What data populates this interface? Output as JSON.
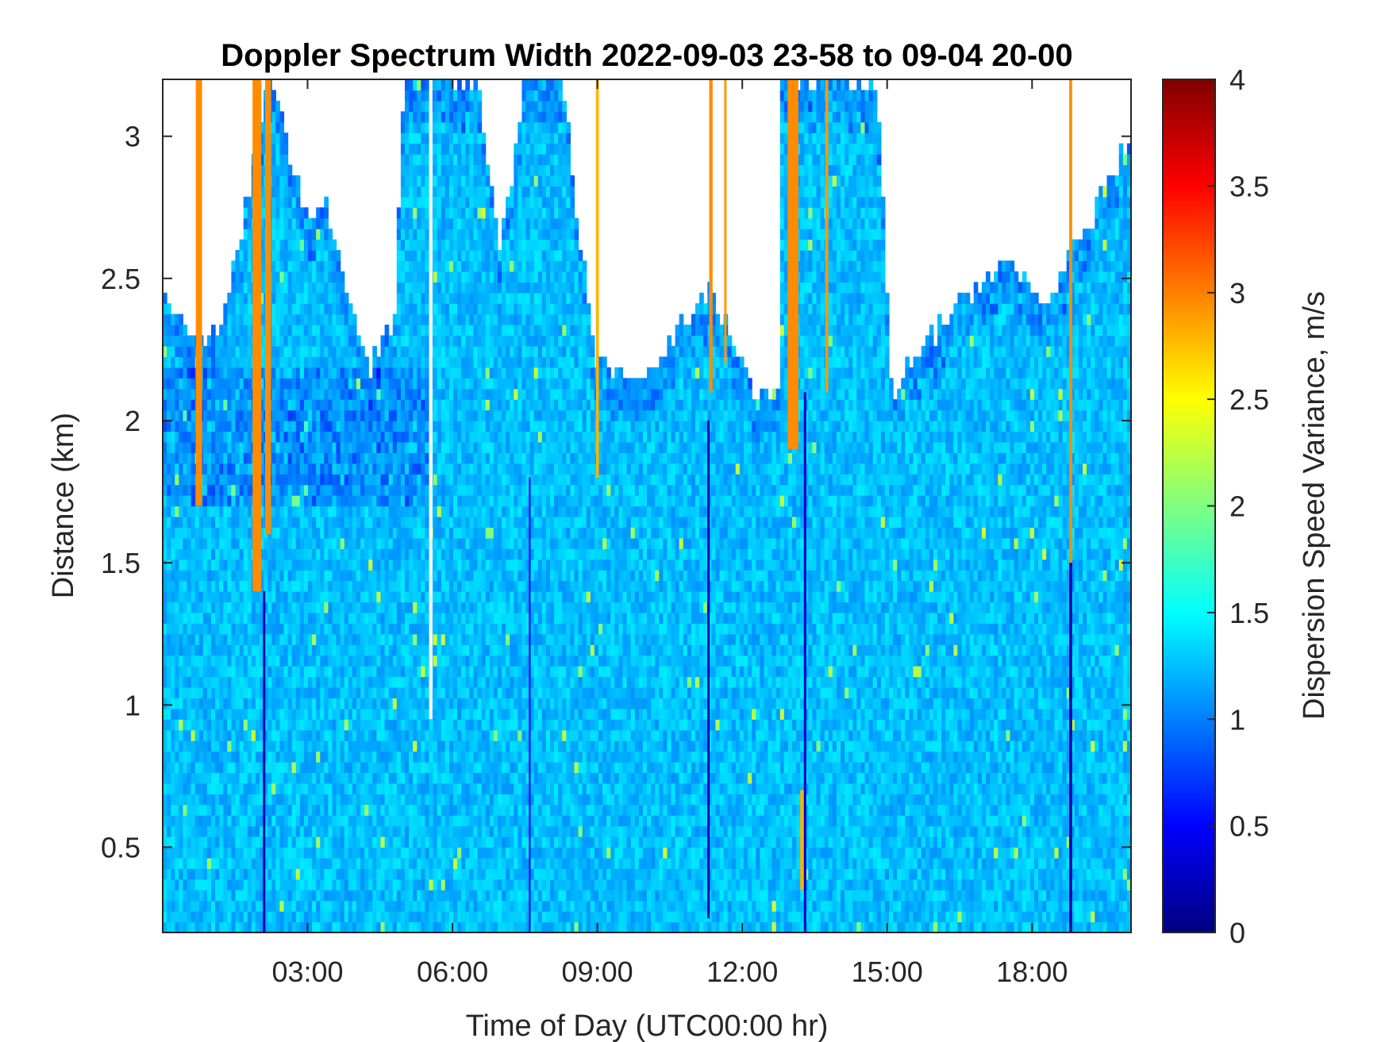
{
  "chart_data": {
    "type": "heatmap",
    "title": "Doppler Spectrum Width 2022-09-03 23-58 to 09-04 20-00",
    "xlabel": "Time of Day (UTC00:00 hr)",
    "ylabel": "Distance (km)",
    "colorbar_label": "Dispersion Speed Variance, m/s",
    "colormap": "jet",
    "x_range_hours": [
      0,
      20.05
    ],
    "y_range_km": [
      0.2,
      3.2
    ],
    "color_range": [
      0,
      4
    ],
    "x_ticks": [
      {
        "value": 3,
        "label": "03:00"
      },
      {
        "value": 6,
        "label": "06:00"
      },
      {
        "value": 9,
        "label": "09:00"
      },
      {
        "value": 12,
        "label": "12:00"
      },
      {
        "value": 15,
        "label": "15:00"
      },
      {
        "value": 18,
        "label": "18:00"
      }
    ],
    "y_ticks": [
      {
        "value": 0.5,
        "label": "0.5"
      },
      {
        "value": 1,
        "label": "1"
      },
      {
        "value": 1.5,
        "label": "1.5"
      },
      {
        "value": 2,
        "label": "2"
      },
      {
        "value": 2.5,
        "label": "2.5"
      },
      {
        "value": 3,
        "label": "3"
      }
    ],
    "colorbar_ticks": [
      {
        "value": 0,
        "label": "0"
      },
      {
        "value": 0.5,
        "label": "0.5"
      },
      {
        "value": 1,
        "label": "1"
      },
      {
        "value": 1.5,
        "label": "1.5"
      },
      {
        "value": 2,
        "label": "2"
      },
      {
        "value": 2.5,
        "label": "2.5"
      },
      {
        "value": 3,
        "label": "3"
      },
      {
        "value": 3.5,
        "label": "3.5"
      },
      {
        "value": 4,
        "label": "4"
      }
    ],
    "background_value": 1.25,
    "coverage_top_km": [
      {
        "time": 0.0,
        "top": 2.45
      },
      {
        "time": 0.5,
        "top": 2.32
      },
      {
        "time": 1.2,
        "top": 2.3
      },
      {
        "time": 2.2,
        "top": 3.2
      },
      {
        "time": 2.6,
        "top": 2.95
      },
      {
        "time": 3.0,
        "top": 2.7
      },
      {
        "time": 3.4,
        "top": 2.75
      },
      {
        "time": 3.8,
        "top": 2.45
      },
      {
        "time": 4.3,
        "top": 2.2
      },
      {
        "time": 4.8,
        "top": 2.35
      },
      {
        "time": 5.0,
        "top": 3.2
      },
      {
        "time": 6.5,
        "top": 3.2
      },
      {
        "time": 7.0,
        "top": 2.6
      },
      {
        "time": 7.5,
        "top": 3.2
      },
      {
        "time": 8.3,
        "top": 3.2
      },
      {
        "time": 8.5,
        "top": 2.8
      },
      {
        "time": 9.0,
        "top": 2.2
      },
      {
        "time": 10.0,
        "top": 2.15
      },
      {
        "time": 10.8,
        "top": 2.35
      },
      {
        "time": 11.3,
        "top": 2.45
      },
      {
        "time": 11.8,
        "top": 2.3
      },
      {
        "time": 12.3,
        "top": 2.05
      },
      {
        "time": 12.8,
        "top": 2.15
      },
      {
        "time": 12.8,
        "top": 3.2
      },
      {
        "time": 14.8,
        "top": 3.2
      },
      {
        "time": 15.1,
        "top": 2.1
      },
      {
        "time": 15.6,
        "top": 2.25
      },
      {
        "time": 16.2,
        "top": 2.35
      },
      {
        "time": 16.8,
        "top": 2.45
      },
      {
        "time": 17.5,
        "top": 2.6
      },
      {
        "time": 18.2,
        "top": 2.4
      },
      {
        "time": 19.2,
        "top": 2.7
      },
      {
        "time": 20.05,
        "top": 3.0
      }
    ],
    "streaks": [
      {
        "time": 0.75,
        "width": 0.13,
        "from_km": 1.7,
        "to_km": 3.2,
        "value": 2.95
      },
      {
        "time": 1.95,
        "width": 0.18,
        "from_km": 1.4,
        "to_km": 3.2,
        "value": 2.95
      },
      {
        "time": 2.18,
        "width": 0.12,
        "from_km": 1.6,
        "to_km": 3.2,
        "value": 2.95
      },
      {
        "time": 9.0,
        "width": 0.06,
        "from_km": 1.8,
        "to_km": 3.2,
        "value": 2.8
      },
      {
        "time": 11.35,
        "width": 0.07,
        "from_km": 2.1,
        "to_km": 3.2,
        "value": 2.95
      },
      {
        "time": 11.65,
        "width": 0.05,
        "from_km": 2.2,
        "to_km": 3.2,
        "value": 2.9
      },
      {
        "time": 13.05,
        "width": 0.22,
        "from_km": 1.9,
        "to_km": 3.2,
        "value": 2.95
      },
      {
        "time": 13.25,
        "width": 0.1,
        "from_km": 0.35,
        "to_km": 0.7,
        "value": 2.8
      },
      {
        "time": 13.75,
        "width": 0.06,
        "from_km": 2.1,
        "to_km": 3.2,
        "value": 2.9
      },
      {
        "time": 18.8,
        "width": 0.06,
        "from_km": 1.5,
        "to_km": 3.2,
        "value": 2.95
      }
    ],
    "dark_streaks": [
      {
        "time": 2.1,
        "width": 0.05,
        "from_km": 0.2,
        "to_km": 1.4,
        "value": 0.2
      },
      {
        "time": 11.3,
        "width": 0.05,
        "from_km": 0.25,
        "to_km": 2.0,
        "value": 0.25
      },
      {
        "time": 13.3,
        "width": 0.05,
        "from_km": 0.2,
        "to_km": 2.1,
        "value": 0.3
      },
      {
        "time": 18.8,
        "width": 0.06,
        "from_km": 0.2,
        "to_km": 1.5,
        "value": 0.2
      },
      {
        "time": 7.6,
        "width": 0.04,
        "from_km": 0.2,
        "to_km": 1.8,
        "value": 0.6
      }
    ],
    "gaps": [
      {
        "time": 5.55,
        "width": 0.07,
        "from_km": 0.95,
        "to_km": 3.2
      }
    ]
  }
}
